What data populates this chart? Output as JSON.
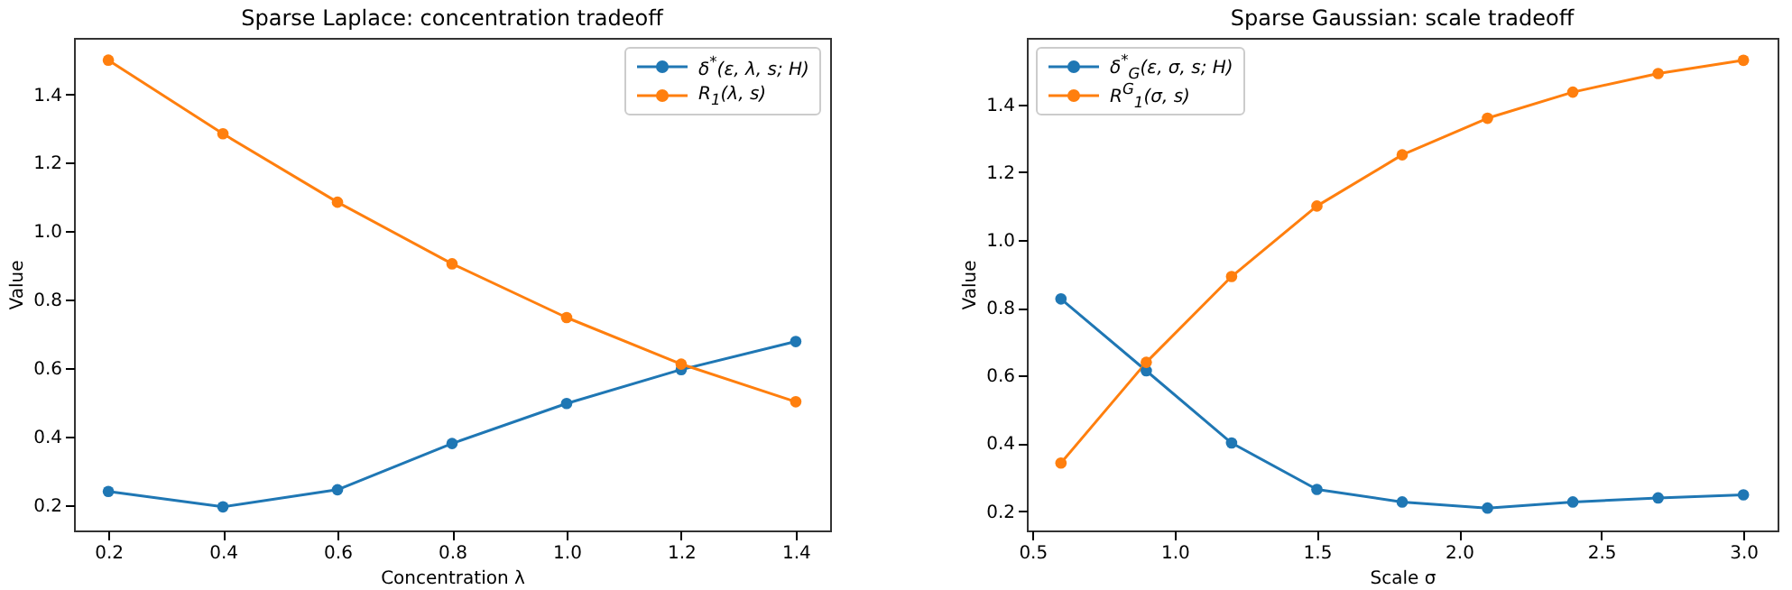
{
  "chart_data": [
    {
      "type": "line",
      "title": "Sparse Laplace: concentration tradeoff",
      "xlabel": "Concentration λ",
      "ylabel": "Value",
      "x": [
        0.2,
        0.4,
        0.6,
        0.8,
        1.0,
        1.2,
        1.4
      ],
      "series": [
        {
          "name": "δ$^{*}$(ε, λ, s; H)",
          "color": "#1f77b4",
          "values": [
            0.24,
            0.195,
            0.245,
            0.38,
            0.497,
            0.596,
            0.678
          ]
        },
        {
          "name": "R$_{1}$(λ, s)",
          "color": "#ff7f0e",
          "values": [
            1.5,
            1.285,
            1.085,
            0.905,
            0.748,
            0.612,
            0.502
          ]
        }
      ],
      "xlim": [
        0.14,
        1.46
      ],
      "xticks": [
        0.2,
        0.4,
        0.6,
        0.8,
        {
          "value": 1.0,
          "label": "1.0"
        },
        1.2,
        1.4
      ],
      "ylim": [
        0.126,
        1.565
      ],
      "yticks": [
        0.2,
        0.4,
        0.6,
        0.8,
        {
          "value": 1.0,
          "label": "1.0"
        },
        1.2,
        1.4
      ],
      "grid": false,
      "legend": "top right",
      "marker": "circle",
      "line_style": "solid"
    },
    {
      "type": "line",
      "title": "Sparse Gaussian: scale tradeoff",
      "xlabel": "Scale σ",
      "ylabel": "Value",
      "x": [
        0.6,
        0.9,
        1.2,
        1.5,
        1.8,
        2.1,
        2.4,
        2.7,
        3.0
      ],
      "series": [
        {
          "name": "δ$^{*}$$_{G}$(ε, σ, s; H)",
          "color": "#1f77b4",
          "values": [
            0.826,
            0.614,
            0.401,
            0.264,
            0.227,
            0.209,
            0.227,
            0.239,
            0.248
          ]
        },
        {
          "name": "R$^{G}$$_{1}$(σ, s)",
          "color": "#ff7f0e",
          "values": [
            0.342,
            0.639,
            0.892,
            1.1,
            1.251,
            1.359,
            1.436,
            1.491,
            1.53
          ]
        }
      ],
      "xlim": [
        0.48,
        3.12
      ],
      "xticks": [
        0.5,
        {
          "value": 1.0,
          "label": "1.0"
        },
        1.5,
        {
          "value": 2.0,
          "label": "2.0"
        },
        2.5,
        {
          "value": 3.0,
          "label": "3.0"
        }
      ],
      "ylim": [
        0.143,
        1.596
      ],
      "yticks": [
        0.2,
        0.4,
        0.6,
        0.8,
        {
          "value": 1.0,
          "label": "1.0"
        },
        1.2,
        1.4
      ],
      "grid": false,
      "legend": "top left",
      "marker": "circle",
      "line_style": "solid"
    }
  ]
}
